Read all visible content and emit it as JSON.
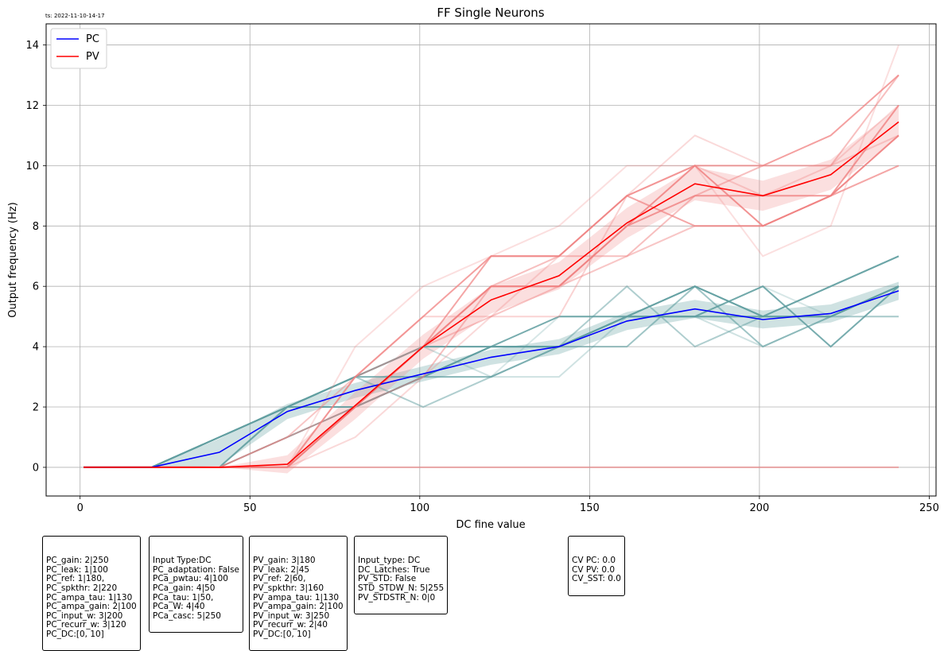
{
  "chart_data": {
    "type": "line",
    "timestamp": "ts: 2022-11-10-14-17",
    "title": "FF Single Neurons",
    "xlabel": "DC fine value",
    "ylabel": "Output frequency (Hz)",
    "xlim": [
      -10,
      252
    ],
    "ylim": [
      -0.95,
      14.7
    ],
    "xticks": [
      0,
      50,
      100,
      150,
      200,
      250
    ],
    "yticks": [
      0,
      2,
      4,
      6,
      8,
      10,
      12,
      14
    ],
    "grid": true,
    "legend_position": "top-left",
    "x": [
      1,
      21,
      41,
      61,
      81,
      101,
      121,
      141,
      161,
      181,
      201,
      221,
      241
    ],
    "series": [
      {
        "name": "PC",
        "color": "#0000ff",
        "band_color": "#5f9ea0",
        "values": [
          0,
          0,
          0.5,
          1.85,
          2.55,
          3.1,
          3.65,
          4.0,
          4.85,
          5.25,
          4.9,
          5.1,
          5.85
        ],
        "band_low": [
          0,
          0,
          0.05,
          1.6,
          2.3,
          2.85,
          3.4,
          3.75,
          4.55,
          4.95,
          4.6,
          4.8,
          5.55
        ],
        "band_high": [
          0,
          0,
          0.95,
          2.1,
          2.8,
          3.35,
          3.9,
          4.25,
          5.15,
          5.55,
          5.2,
          5.4,
          6.15
        ],
        "neuron_color": "#5f9ea0",
        "neurons": [
          [
            0,
            0,
            1,
            2,
            3,
            4,
            4,
            4,
            5,
            6,
            5,
            6,
            7
          ],
          [
            0,
            0,
            1,
            2,
            2,
            3,
            4,
            4,
            5,
            5,
            5,
            5,
            6
          ],
          [
            0,
            0,
            0,
            2,
            3,
            3,
            3,
            4,
            5,
            6,
            5,
            5,
            6
          ],
          [
            0,
            0,
            1,
            2,
            3,
            4,
            3,
            3,
            5,
            5,
            4,
            5,
            5
          ],
          [
            0,
            0,
            0,
            1,
            2,
            3,
            4,
            5,
            5,
            5,
            6,
            4,
            6
          ],
          [
            0,
            0,
            1,
            2,
            3,
            3,
            4,
            4,
            4,
            6,
            4,
            5,
            6
          ],
          [
            0,
            0,
            0,
            2,
            2,
            3,
            3,
            4,
            5,
            5,
            5,
            5,
            5
          ],
          [
            0,
            0,
            1,
            2,
            3,
            2,
            3,
            4,
            6,
            4,
            5,
            5,
            6
          ],
          [
            0,
            0,
            0,
            2,
            3,
            4,
            4,
            4,
            5,
            6,
            5,
            6,
            7
          ],
          [
            0,
            0,
            1,
            2,
            2,
            3,
            3,
            5,
            5,
            5,
            6,
            5,
            6
          ]
        ]
      },
      {
        "name": "PV",
        "color": "#ff0000",
        "band_color": "#f08080",
        "values": [
          0,
          0,
          0,
          0.1,
          2.05,
          4.0,
          5.55,
          6.35,
          8.1,
          9.4,
          9.0,
          9.7,
          11.45
        ],
        "band_low": [
          0,
          0,
          0,
          -0.2,
          1.6,
          3.6,
          5.1,
          5.9,
          7.6,
          8.85,
          8.5,
          9.2,
          10.95
        ],
        "band_high": [
          0,
          0,
          0,
          0.4,
          2.5,
          4.4,
          6.0,
          6.8,
          8.6,
          9.95,
          9.5,
          10.2,
          11.95
        ],
        "neuron_color": "#f08080",
        "neurons": [
          [
            0,
            0,
            0,
            0,
            3,
            5,
            7,
            7,
            9,
            10,
            10,
            11,
            13
          ],
          [
            0,
            0,
            0,
            0,
            2,
            4,
            6,
            6,
            8,
            9,
            9,
            9,
            12
          ],
          [
            0,
            0,
            0,
            1,
            3,
            4,
            5,
            6,
            7,
            8,
            8,
            9,
            11
          ],
          [
            0,
            0,
            0,
            0,
            1,
            3,
            5,
            7,
            9,
            11,
            10,
            10,
            12
          ],
          [
            0,
            0,
            0,
            0,
            2,
            4,
            6,
            6,
            8,
            10,
            8,
            9,
            11
          ],
          [
            0,
            0,
            0,
            0,
            0,
            0,
            0,
            0,
            0,
            0,
            0,
            0,
            0
          ],
          [
            0,
            0,
            0,
            0,
            3,
            5,
            5,
            5,
            9,
            10,
            9,
            10,
            11
          ],
          [
            0,
            0,
            0,
            1,
            2,
            3,
            6,
            7,
            7,
            9,
            10,
            10,
            13
          ],
          [
            0,
            0,
            0,
            0,
            2,
            4,
            7,
            7,
            9,
            8,
            8,
            9,
            10
          ],
          [
            0,
            0,
            0,
            0,
            4,
            6,
            7,
            8,
            10,
            10,
            7,
            8,
            14
          ]
        ]
      }
    ]
  },
  "info_boxes": [
    {
      "lines": [
        "PC_gain: 2|250",
        "PC_leak: 1|100",
        "PC_ref: 1|180,",
        "PC_spkthr: 2|220",
        "PC_ampa_tau: 1|130",
        "PC_ampa_gain: 2|100",
        "PC_input_w: 3|200",
        "PC_recurr_w: 3|120",
        "PC_DC:[0, 10]"
      ]
    },
    {
      "lines": [
        "Input Type:DC",
        "PC_adaptation: False",
        "PCa_pwtau: 4|100",
        "PCa_gain: 4|50",
        "PCa_tau: 1|50,",
        "PCa_W: 4|40",
        "PCa_casc: 5|250"
      ]
    },
    {
      "lines": [
        "PV_gain: 3|180",
        "PV_leak: 2|45",
        "PV_ref: 2|60,",
        "PV_spkthr: 3|160",
        "PV_ampa_tau: 1|130",
        "PV_ampa_gain: 2|100",
        "PV_input_w: 3|250",
        "PV_recurr_w: 2|40",
        "PV_DC:[0, 10]"
      ]
    },
    {
      "lines": [
        "Input_type: DC",
        "DC_Latches: True",
        "PV_STD: False",
        "STD_STDW_N: 5|255",
        "PV_STDSTR_N: 0|0"
      ]
    },
    {
      "lines": [
        "CV PC: 0.0",
        "CV PV: 0.0",
        "CV_SST: 0.0"
      ]
    }
  ]
}
